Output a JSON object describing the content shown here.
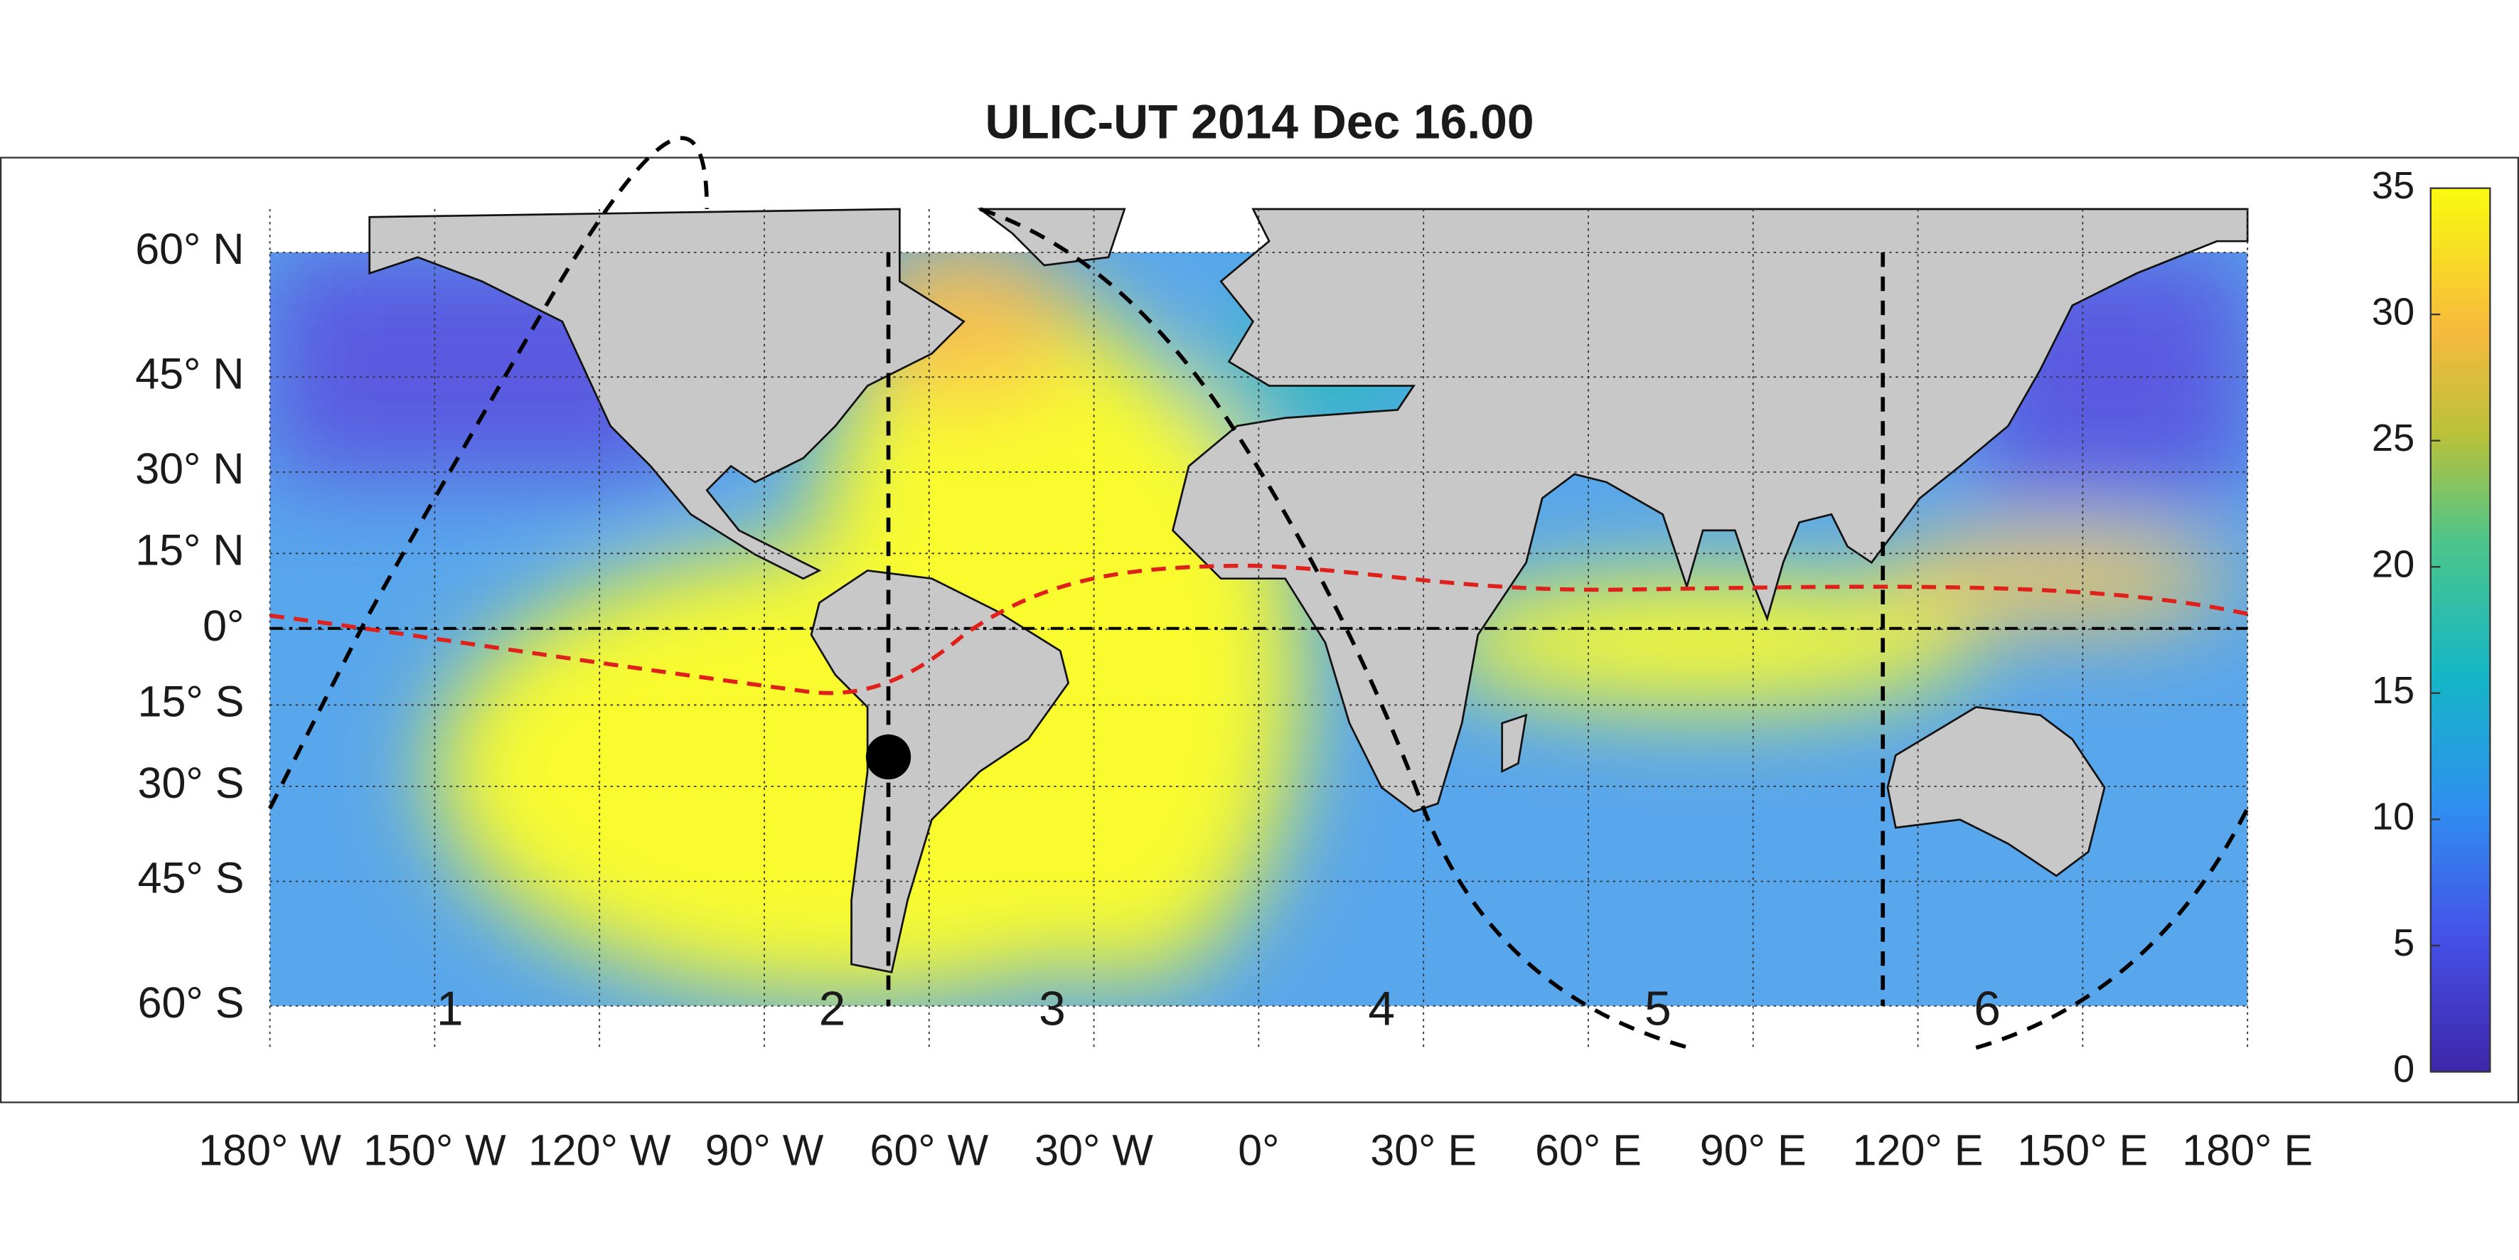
{
  "chart_data": {
    "type": "map",
    "title": "ULIC-UT 2014 Dec 16.00",
    "projection": "mercator",
    "grid": true,
    "xlim": [
      -180,
      180
    ],
    "ylim": [
      -60,
      60
    ],
    "xticks": [
      {
        "value": -180,
        "label": "180° W"
      },
      {
        "value": -150,
        "label": "150° W"
      },
      {
        "value": -120,
        "label": "120° W"
      },
      {
        "value": -90,
        "label": "90° W"
      },
      {
        "value": -60,
        "label": "60° W"
      },
      {
        "value": -30,
        "label": "30° W"
      },
      {
        "value": 0,
        "label": "0°"
      },
      {
        "value": 30,
        "label": "30° E"
      },
      {
        "value": 60,
        "label": "60° E"
      },
      {
        "value": 90,
        "label": "90° E"
      },
      {
        "value": 120,
        "label": "120° E"
      },
      {
        "value": 150,
        "label": "150° E"
      },
      {
        "value": 180,
        "label": "180° E"
      }
    ],
    "yticks": [
      {
        "value": 60,
        "label": "60° N"
      },
      {
        "value": 45,
        "label": "45° N"
      },
      {
        "value": 30,
        "label": "30° N"
      },
      {
        "value": 15,
        "label": "15° N"
      },
      {
        "value": 0,
        "label": "0°"
      },
      {
        "value": -15,
        "label": "15° S"
      },
      {
        "value": -30,
        "label": "30° S"
      },
      {
        "value": -45,
        "label": "45° S"
      },
      {
        "value": -60,
        "label": "60° S"
      }
    ],
    "colorbar": {
      "lim": [
        0,
        35
      ],
      "ticks": [
        0,
        5,
        10,
        15,
        20,
        25,
        30,
        35
      ]
    },
    "region_labels": [
      "1",
      "2",
      "3",
      "4",
      "5",
      "6"
    ]
  }
}
